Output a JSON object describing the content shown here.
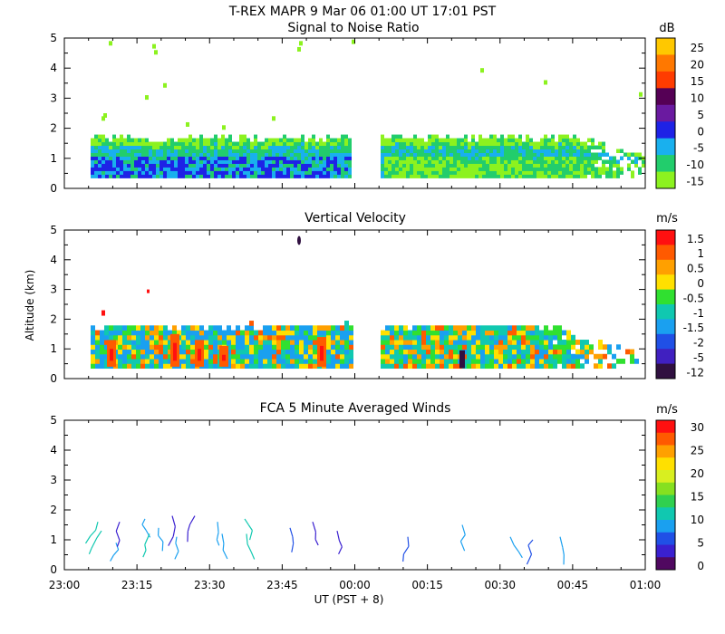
{
  "chart_data": {
    "type": "heatmap",
    "title": "T-REX   MAPR   9 Mar 06   01:00 UT   17:01   PST",
    "xlabel": "UT  (PST + 8)",
    "ylabel": "Altitude (km)",
    "x_ticks": [
      "23:00",
      "23:15",
      "23:30",
      "23:45",
      "00:00",
      "00:15",
      "00:30",
      "00:45",
      "01:00"
    ],
    "y_ticks": [
      "0",
      "1",
      "2",
      "3",
      "4",
      "5"
    ],
    "ylim": [
      0,
      5
    ],
    "panels": [
      {
        "title": "Signal to Noise Ratio",
        "unit": "dB",
        "colorbar_labels": [
          "25",
          "20",
          "15",
          "10",
          "5",
          "0",
          "-5",
          "-10",
          "-15"
        ],
        "colors": [
          "#ffc800",
          "#ff7800",
          "#ff3c00",
          "#550055",
          "#6a1aa0",
          "#1e22e6",
          "#19b0ee",
          "#22cd6c",
          "#8cf21f"
        ]
      },
      {
        "title": "Vertical Velocity",
        "unit": "m/s",
        "colorbar_labels": [
          "1.5",
          "1",
          "0.5",
          "0",
          "-0.5",
          "-1",
          "-1.5",
          "-2",
          "-5",
          "-12"
        ],
        "colors": [
          "#ff1010",
          "#ff5a00",
          "#ffa000",
          "#ffe000",
          "#30e030",
          "#10c8b0",
          "#1aa0f0",
          "#2050e6",
          "#4020c0",
          "#301040"
        ]
      },
      {
        "title": "FCA 5 Minute Averaged Winds",
        "unit": "m/s",
        "colorbar_labels": [
          "30",
          "25",
          "20",
          "15",
          "10",
          "5",
          "0"
        ],
        "colors": [
          "#ff1010",
          "#ff5a00",
          "#ffa000",
          "#ffe000",
          "#d8ef20",
          "#86e020",
          "#30d050",
          "#10c8b0",
          "#1aa0f0",
          "#2050e6",
          "#3a20d0",
          "#500860"
        ]
      }
    ]
  }
}
